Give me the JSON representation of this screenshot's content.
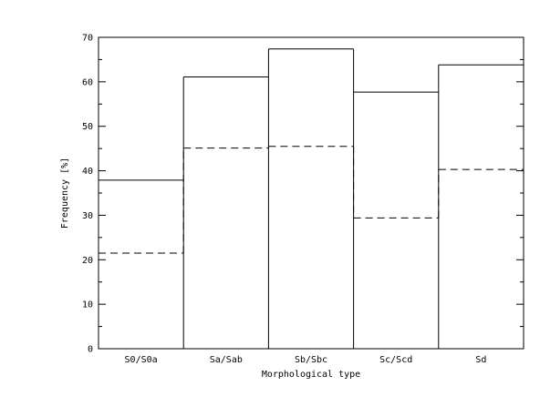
{
  "chart_data": {
    "type": "bar",
    "title": "",
    "xlabel": "Morphological type",
    "ylabel": "Frequency [%]",
    "ylim": [
      0,
      70
    ],
    "yticks": [
      0,
      10,
      20,
      30,
      40,
      50,
      60,
      70
    ],
    "categories": [
      "S0/S0a",
      "Sa/Sab",
      "Sb/Sbc",
      "Sc/Scd",
      "Sd"
    ],
    "series": [
      {
        "style": "solid",
        "values": [
          37.9,
          61.1,
          67.4,
          57.7,
          63.8
        ]
      },
      {
        "style": "dashed",
        "values": [
          21.5,
          45.1,
          45.5,
          29.4,
          40.3
        ]
      }
    ],
    "grid": false,
    "legend": "none"
  }
}
